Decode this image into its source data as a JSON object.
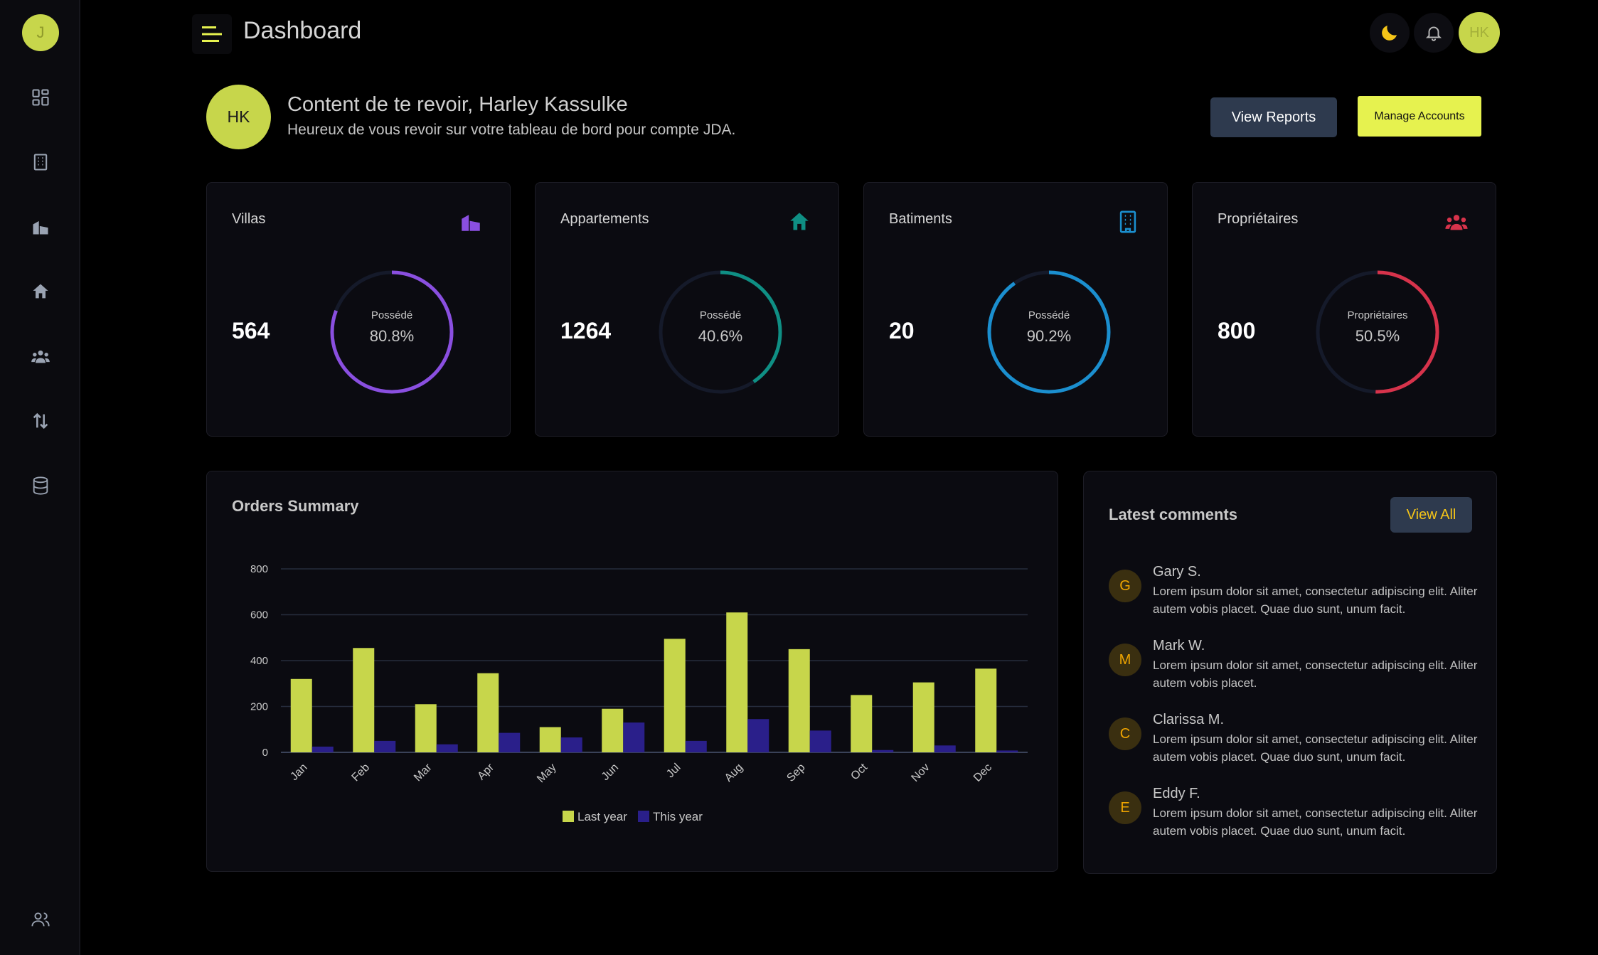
{
  "sidebar": {
    "avatar_initial": "J",
    "items": [
      {
        "icon": "dashboard-grid-icon"
      },
      {
        "icon": "building-icon"
      },
      {
        "icon": "villa-icon"
      },
      {
        "icon": "home-icon"
      },
      {
        "icon": "users-icon"
      },
      {
        "icon": "transfer-arrows-icon"
      },
      {
        "icon": "database-icon"
      }
    ],
    "bottom_icon": "user-group-icon"
  },
  "header": {
    "title": "Dashboard",
    "avatar_initials": "HK"
  },
  "welcome": {
    "avatar_initials": "HK",
    "title": "Content de te revoir, Harley Kassulke",
    "subtitle": "Heureux de vous revoir sur votre tableau de bord pour compte JDA.",
    "view_reports_label": "View Reports",
    "manage_accounts_label": "Manage Accounts"
  },
  "stats": [
    {
      "title": "Villas",
      "value": "564",
      "ring_label": "Possédé",
      "percent_text": "80.8%",
      "percent": 0.808,
      "color": "#8a4fe0",
      "icon": "villa-icon"
    },
    {
      "title": "Appartements",
      "value": "1264",
      "ring_label": "Possédé",
      "percent_text": "40.6%",
      "percent": 0.406,
      "color": "#0f8f84",
      "icon": "home-icon"
    },
    {
      "title": "Batiments",
      "value": "20",
      "ring_label": "Possédé",
      "percent_text": "90.2%",
      "percent": 0.902,
      "color": "#1b8fcf",
      "icon": "building-icon"
    },
    {
      "title": "Propriétaires",
      "value": "800",
      "ring_label": "Propriétaires",
      "percent_text": "50.5%",
      "percent": 0.505,
      "color": "#d7334b",
      "icon": "users-icon"
    }
  ],
  "orders": {
    "title": "Orders Summary"
  },
  "chart_data": {
    "type": "bar",
    "title": "Orders Summary",
    "categories": [
      "Jan",
      "Feb",
      "Mar",
      "Apr",
      "May",
      "Jun",
      "Jul",
      "Aug",
      "Sep",
      "Oct",
      "Nov",
      "Dec"
    ],
    "series": [
      {
        "name": "Last year",
        "color": "#c7d64b",
        "values": [
          320,
          455,
          210,
          345,
          110,
          190,
          495,
          610,
          450,
          250,
          305,
          365
        ]
      },
      {
        "name": "This year",
        "color": "#2a1f8a",
        "values": [
          25,
          50,
          35,
          85,
          65,
          130,
          50,
          145,
          95,
          10,
          30,
          8
        ]
      }
    ],
    "ylim": [
      0,
      800
    ],
    "yticks": [
      0,
      200,
      400,
      600,
      800
    ],
    "grid": true,
    "legend": "bottom-center"
  },
  "comments": {
    "title": "Latest comments",
    "view_all_label": "View All",
    "items": [
      {
        "initial": "G",
        "name": "Gary S.",
        "text": "Lorem ipsum dolor sit amet, consectetur adipiscing elit. Aliter autem vobis placet. Quae duo sunt, unum facit."
      },
      {
        "initial": "M",
        "name": "Mark W.",
        "text": "Lorem ipsum dolor sit amet, consectetur adipiscing elit. Aliter autem vobis placet."
      },
      {
        "initial": "C",
        "name": "Clarissa M.",
        "text": "Lorem ipsum dolor sit amet, consectetur adipiscing elit. Aliter autem vobis placet. Quae duo sunt, unum facit."
      },
      {
        "initial": "E",
        "name": "Eddy F.",
        "text": "Lorem ipsum dolor sit amet, consectetur adipiscing elit. Aliter autem vobis placet. Quae duo sunt, unum facit."
      }
    ]
  }
}
